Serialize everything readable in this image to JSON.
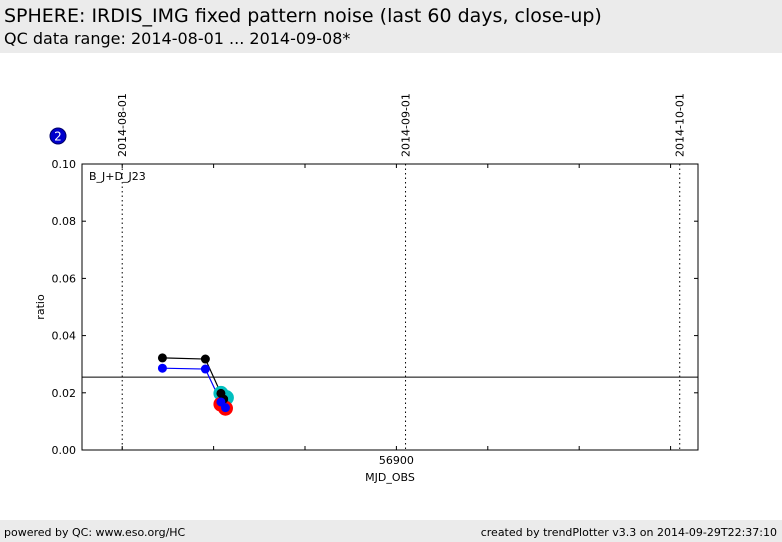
{
  "header": {
    "title": "SPHERE: IRDIS_IMG fixed pattern noise (last 60 days, close-up)",
    "subtitle": "QC data range: 2014-08-01 ... 2014-09-08*"
  },
  "footer": {
    "left": "powered by QC: www.eso.org/HC",
    "right": "created by trendPlotter v3.3 on 2014-09-29T22:37:10"
  },
  "chart_data": {
    "type": "scatter",
    "panel_badge": "2",
    "panel_label": "B_J+D_J23",
    "xlabel": "MJD_OBS",
    "ylabel": "ratio",
    "xlim": [
      56865.6,
      56933.0
    ],
    "ylim": [
      0.0,
      0.1
    ],
    "x_ticks": [
      56900
    ],
    "x_tick_labels": [
      "56900"
    ],
    "x_minor_ticks": [
      56870,
      56880,
      56890,
      56910,
      56920,
      56930
    ],
    "y_ticks": [
      0.0,
      0.02,
      0.04,
      0.06,
      0.08,
      0.1
    ],
    "y_tick_labels": [
      "0.00",
      "0.02",
      "0.04",
      "0.06",
      "0.08",
      "0.10"
    ],
    "reference_line": 0.0255,
    "date_markers": [
      {
        "label": "2014-08-01",
        "mjd": 56870.0
      },
      {
        "label": "2014-09-01",
        "mjd": 56901.0
      },
      {
        "label": "2014-10-01",
        "mjd": 56931.0
      }
    ],
    "series": [
      {
        "color": "#000000",
        "connected": true,
        "marker_size": "small",
        "points": [
          [
            56874.4,
            0.0322
          ],
          [
            56879.1,
            0.0318
          ],
          [
            56880.8,
            0.0198
          ],
          [
            56881.1,
            0.0178
          ]
        ]
      },
      {
        "color": "#0000ff",
        "connected": true,
        "marker_size": "small",
        "points": [
          [
            56874.4,
            0.0286
          ],
          [
            56879.1,
            0.0283
          ],
          [
            56880.8,
            0.0168
          ],
          [
            56881.3,
            0.0148
          ]
        ]
      },
      {
        "color": "#00bfbf",
        "connected": false,
        "marker_size": "large",
        "points": [
          [
            56880.8,
            0.0198
          ],
          [
            56881.4,
            0.0183
          ]
        ]
      },
      {
        "color": "#ff0000",
        "connected": false,
        "marker_size": "large",
        "points": [
          [
            56880.8,
            0.016
          ],
          [
            56881.3,
            0.0146
          ]
        ]
      }
    ]
  }
}
